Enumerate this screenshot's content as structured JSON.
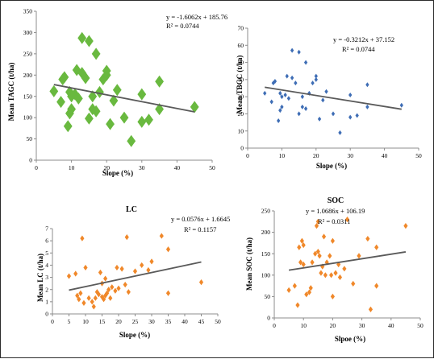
{
  "chart_data": [
    {
      "type": "scatter",
      "title": "",
      "xlabel": "Slope (%)",
      "ylabel": "Mean TAGC (t/ha)",
      "xlim": [
        0,
        50
      ],
      "ylim": [
        0,
        350
      ],
      "xticks": [
        "0",
        "10",
        "20",
        "30",
        "40",
        "50"
      ],
      "yticks": [
        "0",
        "50",
        "100",
        "150",
        "200",
        "250",
        "300",
        "350"
      ],
      "marker": "diamond-large",
      "color": "#69b93f",
      "equation": "y = -1.6062x + 185.76",
      "r2": "R² = 0.0744",
      "trend": {
        "slope": -1.6062,
        "intercept": 185.76,
        "x_range": [
          5,
          45
        ]
      },
      "x": [
        5,
        7,
        7.5,
        8,
        9,
        9.5,
        9.5,
        10,
        10,
        11,
        11.5,
        12,
        13,
        13,
        14,
        15,
        15,
        16,
        16,
        17,
        17,
        18,
        19,
        20,
        20,
        21,
        22,
        23,
        25,
        27,
        30,
        30,
        32,
        35,
        35,
        45
      ],
      "y": [
        162,
        137,
        190,
        195,
        80,
        110,
        160,
        120,
        150,
        155,
        212,
        145,
        205,
        287,
        193,
        280,
        98,
        150,
        120,
        115,
        250,
        160,
        190,
        200,
        210,
        85,
        140,
        165,
        100,
        45,
        155,
        90,
        95,
        185,
        120,
        125
      ]
    },
    {
      "type": "scatter",
      "title": "",
      "xlabel": "Slope (%)",
      "ylabel": "Mean TBGC (t/ha)",
      "xlim": [
        0,
        50
      ],
      "ylim": [
        0,
        70
      ],
      "xticks": [
        "0",
        "10",
        "20",
        "30",
        "40",
        "50"
      ],
      "yticks": [
        "0",
        "10",
        "20",
        "30",
        "40",
        "50",
        "60",
        "70"
      ],
      "marker": "diamond-small",
      "color": "#3e6db5",
      "equation": "y = -0.3212x + 37.152",
      "r2": "R² = 0.0744",
      "trend": {
        "slope": -0.3212,
        "intercept": 37.152,
        "x_range": [
          5,
          45
        ]
      },
      "x": [
        5,
        7,
        7.5,
        8,
        9,
        9.5,
        9.5,
        10,
        10,
        11,
        11.5,
        12,
        13,
        13,
        14,
        15,
        15,
        16,
        16,
        17,
        17,
        18,
        19,
        20,
        20,
        21,
        22,
        23,
        25,
        27,
        30,
        30,
        32,
        35,
        35,
        45
      ],
      "y": [
        32,
        27,
        38,
        39,
        16,
        22,
        32,
        24,
        30,
        31,
        42,
        29,
        41,
        57,
        38,
        56,
        20,
        30,
        24,
        23,
        50,
        32,
        38,
        40,
        42,
        17,
        28,
        33,
        20,
        9,
        31,
        18,
        19,
        37,
        24,
        25
      ]
    },
    {
      "type": "scatter",
      "title": "LC",
      "xlabel": "Slope (%)",
      "ylabel": "Mean LC (t/ha)",
      "xlim": [
        0,
        50
      ],
      "ylim": [
        0,
        7
      ],
      "xticks": [
        "0",
        "5",
        "10",
        "15",
        "20",
        "25",
        "30",
        "35",
        "40",
        "45",
        "50"
      ],
      "yticks": [
        "0",
        "1",
        "2",
        "3",
        "4",
        "5",
        "6",
        "7"
      ],
      "marker": "diamond-medium",
      "color": "#f0882a",
      "equation": "y = 0.0576x + 1.6645",
      "r2": "R² = 0.1157",
      "trend": {
        "slope": 0.0576,
        "intercept": 1.6645,
        "x_range": [
          5,
          45
        ]
      },
      "x": [
        5,
        7,
        7.5,
        8,
        8.5,
        9,
        9.5,
        10,
        11,
        12,
        12.5,
        13,
        13.5,
        14,
        14.5,
        15,
        15,
        15.5,
        16,
        16,
        16.5,
        17,
        17.5,
        18,
        19,
        19.5,
        20,
        21,
        22,
        22.5,
        23,
        25,
        27,
        29,
        30,
        33,
        35,
        35,
        45
      ],
      "y": [
        3.1,
        3.3,
        1.5,
        1.2,
        1.7,
        6.2,
        0.9,
        3.8,
        1.3,
        1.0,
        0.6,
        1.3,
        1.8,
        1.6,
        3.4,
        1.4,
        2.5,
        1.2,
        1.5,
        2.9,
        1.7,
        2.0,
        1.3,
        2.2,
        1.9,
        3.8,
        2.1,
        3.7,
        2.4,
        6.3,
        1.8,
        3.5,
        4.0,
        3.6,
        4.3,
        6.4,
        5.3,
        1.7,
        2.6
      ]
    },
    {
      "type": "scatter",
      "title": "SOC",
      "xlabel": "Slpoe (%)",
      "ylabel": "Mean SOC (t/ha)",
      "xlim": [
        0,
        50
      ],
      "ylim": [
        0,
        250
      ],
      "xticks": [
        "0",
        "10",
        "20",
        "30",
        "40",
        "50"
      ],
      "yticks": [
        "0",
        "50",
        "100",
        "150",
        "200",
        "250"
      ],
      "marker": "diamond-medium",
      "color": "#f0882a",
      "equation": "y = 1.0686x + 106.19",
      "r2": "R² = 0.0311",
      "trend": {
        "slope": 1.0686,
        "intercept": 106.19,
        "x_range": [
          5,
          45
        ]
      },
      "x": [
        5,
        7,
        8,
        8.5,
        9,
        9.5,
        10,
        10,
        11,
        12,
        12.5,
        13,
        14,
        14.5,
        15,
        15,
        15.5,
        16,
        16.5,
        17,
        17.5,
        18,
        19,
        19.5,
        20,
        20,
        21,
        22,
        22.5,
        24,
        25,
        27,
        29,
        32,
        33,
        35,
        35,
        45
      ],
      "y": [
        65,
        75,
        30,
        165,
        130,
        180,
        125,
        170,
        55,
        60,
        70,
        130,
        150,
        215,
        155,
        225,
        145,
        105,
        120,
        190,
        100,
        130,
        145,
        100,
        50,
        180,
        105,
        125,
        95,
        115,
        230,
        80,
        145,
        185,
        20,
        165,
        75,
        215
      ]
    }
  ]
}
